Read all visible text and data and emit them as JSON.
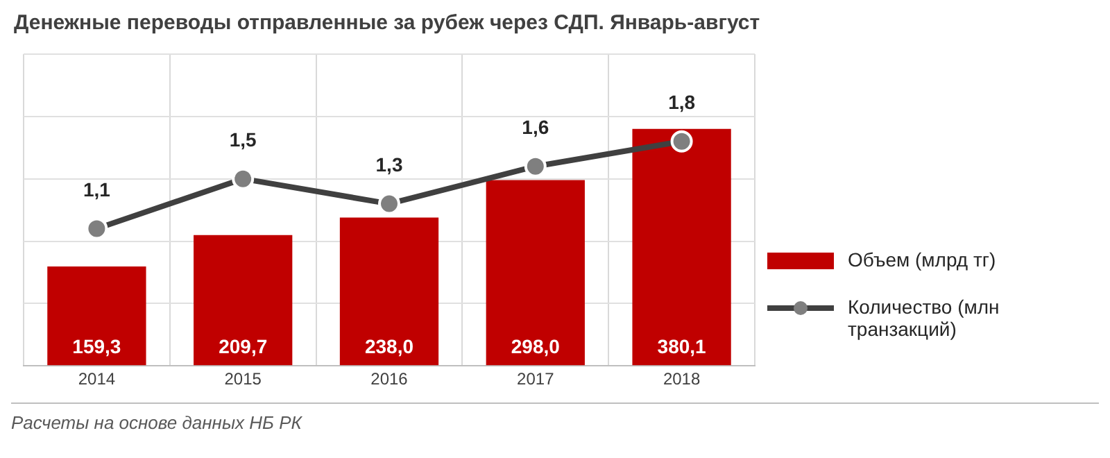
{
  "chart_data": {
    "type": "bar",
    "title": "Денежные переводы отправленные  за рубеж через СДП. Январь-август",
    "categories": [
      "2014",
      "2015",
      "2016",
      "2017",
      "2018"
    ],
    "series": [
      {
        "name": "Объем (млрд тг)",
        "color": "#c00000",
        "values": [
          159.3,
          209.7,
          238.0,
          298.0,
          380.1
        ],
        "value_labels": [
          "159,3",
          "209,7",
          "238,0",
          "298,0",
          "380,1"
        ]
      },
      {
        "name": "Количество (млн транзакций)",
        "type": "line",
        "axis": "y2",
        "color": "#404040",
        "marker": "circle",
        "values": [
          1.1,
          1.5,
          1.3,
          1.6,
          1.8
        ],
        "value_labels": [
          "1,1",
          "1,5",
          "1,3",
          "1,6",
          "1,8"
        ]
      }
    ],
    "grid": true,
    "legend": "right",
    "tick_labels": "x",
    "annotations": [
      "Расчеты на основе данных НБ РК"
    ]
  }
}
